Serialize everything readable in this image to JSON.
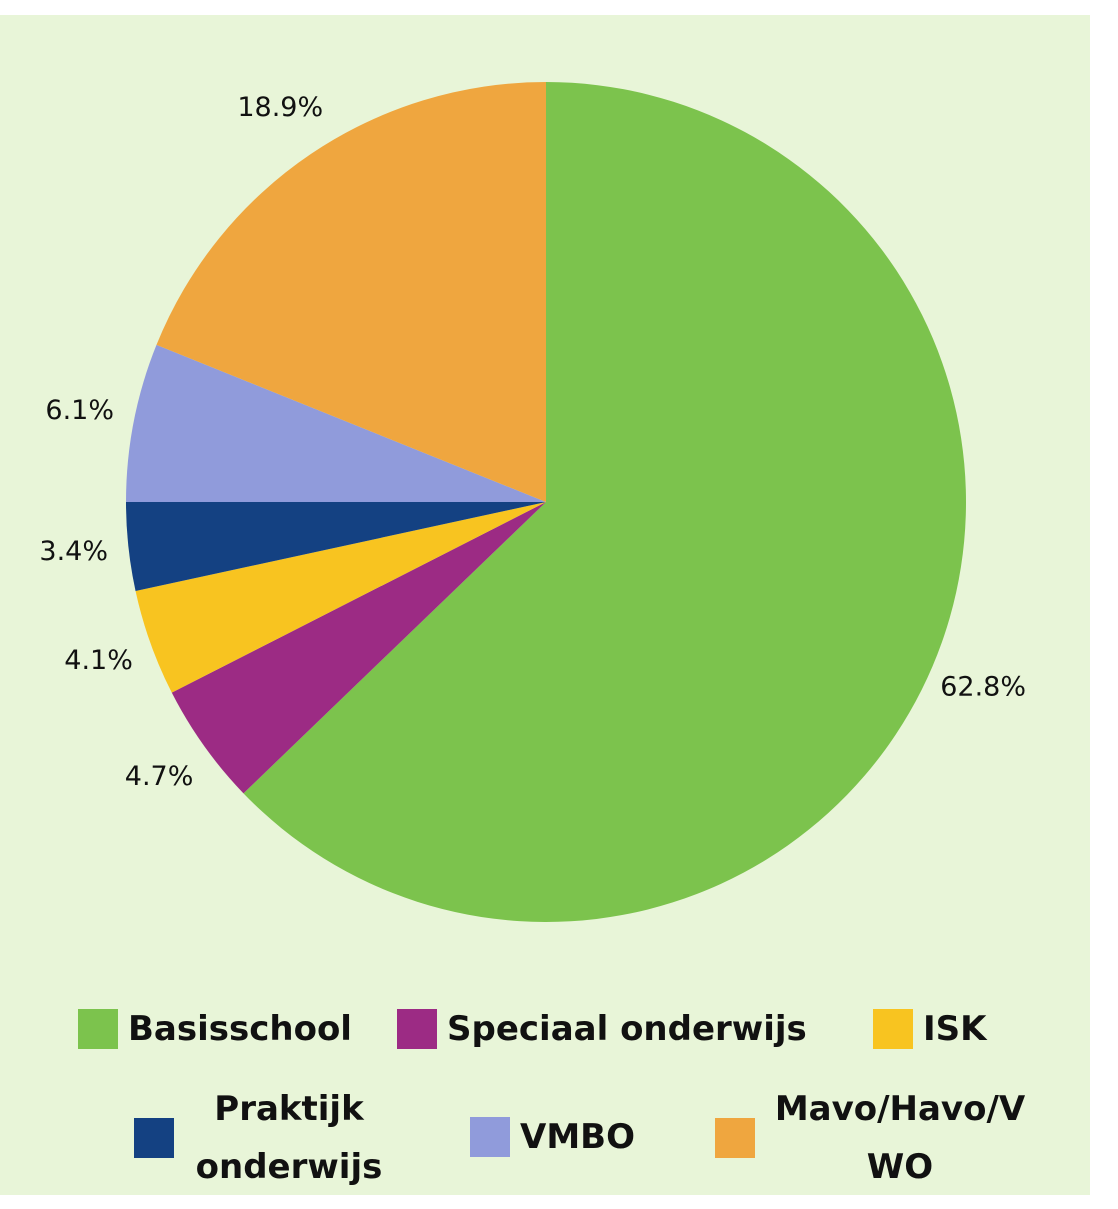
{
  "chart_data": {
    "type": "pie",
    "categories": [
      "Basisschool",
      "Speciaal onderwijs",
      "ISK",
      "Praktijk onderwijs",
      "VMBO",
      "Mavo/Havo/VWO"
    ],
    "values": [
      62.8,
      4.7,
      4.1,
      3.4,
      6.1,
      18.9
    ],
    "value_labels": [
      "62.8%",
      "4.7%",
      "4.1%",
      "3.4%",
      "6.1%",
      "18.9%"
    ],
    "colors": [
      "#7cc34d",
      "#9c2b84",
      "#f8c420",
      "#144182",
      "#909bdb",
      "#efa63f"
    ],
    "legend": "bottom"
  }
}
